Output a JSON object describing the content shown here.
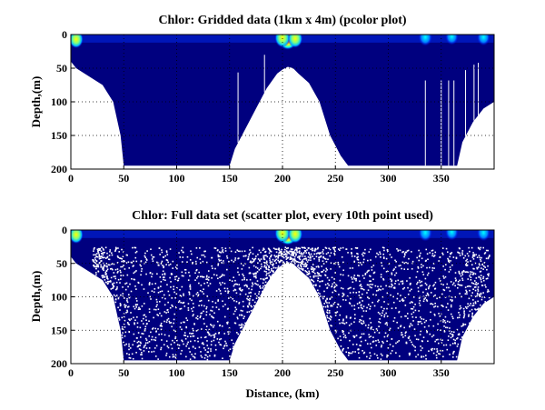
{
  "chart_data": [
    {
      "type": "heatmap",
      "title": "Chlor: Gridded data (1km x 4m) (pcolor plot)",
      "xlabel": "",
      "ylabel": "Depth,(m)",
      "xlim": [
        0,
        400
      ],
      "ylim": [
        200,
        0
      ],
      "y_reversed": true,
      "grid": true,
      "xticks": [
        0,
        50,
        100,
        150,
        200,
        250,
        300,
        350
      ],
      "yticks": [
        0,
        50,
        100,
        150,
        200
      ],
      "bottom_profile": {
        "x": [
          0,
          5,
          10,
          20,
          30,
          40,
          47,
          50,
          100,
          150,
          155,
          165,
          175,
          185,
          195,
          200,
          205,
          210,
          215,
          225,
          235,
          245,
          255,
          262,
          265,
          365,
          370,
          380,
          390,
          400
        ],
        "depth": [
          40,
          50,
          55,
          65,
          75,
          100,
          150,
          195,
          195,
          195,
          170,
          140,
          110,
          80,
          58,
          52,
          48,
          50,
          58,
          72,
          100,
          150,
          180,
          195,
          195,
          195,
          160,
          130,
          110,
          100
        ]
      },
      "colormap": "jet",
      "background_color": "#00007f",
      "hotspots": [
        {
          "x": 205,
          "depth": 5,
          "level": 1.0
        },
        {
          "x": 200,
          "depth": 5,
          "level": 0.65
        },
        {
          "x": 212,
          "depth": 6,
          "level": 0.6
        },
        {
          "x": 5,
          "depth": 7,
          "level": 0.55
        },
        {
          "x": 335,
          "depth": 4,
          "level": 0.5
        },
        {
          "x": 360,
          "depth": 3,
          "level": 0.45
        },
        {
          "x": 390,
          "depth": 4,
          "level": 0.45
        }
      ]
    },
    {
      "type": "scatter",
      "title": "Chlor: Full data set (scatter plot, every 10th point used)",
      "xlabel": "Distance, (km)",
      "ylabel": "Depth,(m)",
      "xlim": [
        0,
        400
      ],
      "ylim": [
        200,
        0
      ],
      "y_reversed": true,
      "grid": true,
      "xticks": [
        0,
        50,
        100,
        150,
        200,
        250,
        300,
        350
      ],
      "yticks": [
        0,
        50,
        100,
        150,
        200
      ],
      "bottom_profile": {
        "x": [
          0,
          5,
          10,
          20,
          30,
          40,
          47,
          50,
          100,
          150,
          155,
          165,
          175,
          185,
          195,
          200,
          205,
          210,
          215,
          225,
          235,
          245,
          255,
          262,
          265,
          365,
          370,
          380,
          390,
          400
        ],
        "depth": [
          40,
          50,
          55,
          65,
          75,
          100,
          150,
          195,
          195,
          195,
          170,
          140,
          110,
          80,
          58,
          52,
          48,
          50,
          58,
          72,
          100,
          150,
          180,
          195,
          195,
          195,
          160,
          130,
          110,
          100
        ]
      },
      "colormap": "jet",
      "background_color": "#00007f",
      "hotspots": [
        {
          "x": 205,
          "depth": 5,
          "level": 1.0
        },
        {
          "x": 200,
          "depth": 5,
          "level": 0.65
        },
        {
          "x": 212,
          "depth": 6,
          "level": 0.6
        },
        {
          "x": 5,
          "depth": 7,
          "level": 0.55
        },
        {
          "x": 335,
          "depth": 4,
          "level": 0.5
        },
        {
          "x": 360,
          "depth": 3,
          "level": 0.45
        },
        {
          "x": 390,
          "depth": 4,
          "level": 0.45
        }
      ]
    }
  ]
}
